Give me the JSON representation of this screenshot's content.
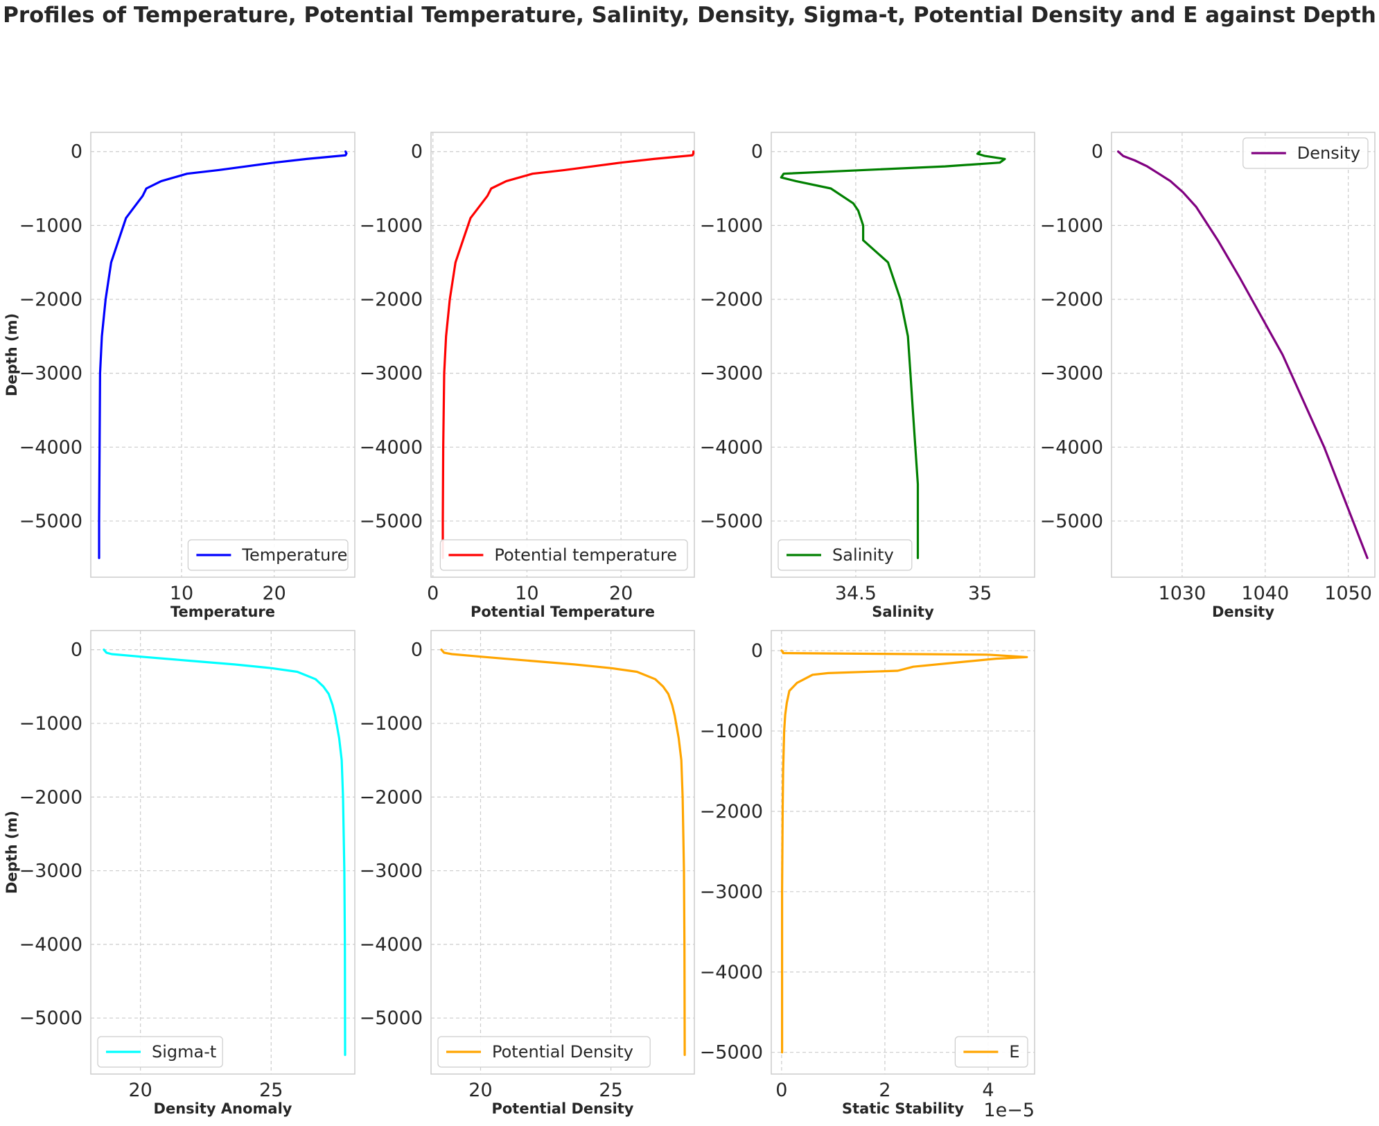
{
  "figure": {
    "title": "Profiles of Temperature, Potential Temperature, Salinity, Density, Sigma-t, Potential Density and E against Depth"
  },
  "chart_data": [
    {
      "type": "line",
      "xlabel": "Temperature",
      "ylabel": "Depth (m)",
      "xlim": [
        0.2,
        28.7
      ],
      "ylim": [
        -5760,
        260
      ],
      "xticks": [
        10,
        20
      ],
      "yticks": [
        0,
        -1000,
        -2000,
        -3000,
        -4000,
        -5000
      ],
      "grid": true,
      "legend": "lower right",
      "series": [
        {
          "name": "Temperature",
          "color": "#0000ff",
          "x": [
            27.7,
            27.8,
            27.7,
            23.5,
            20,
            17,
            14,
            10.6,
            7.8,
            6.2,
            5.8,
            4.9,
            4,
            3.2,
            2.4,
            1.8,
            1.4,
            1.2,
            1.15,
            1.1,
            1.1
          ],
          "y": [
            0,
            -25,
            -50,
            -100,
            -150,
            -200,
            -250,
            -300,
            -400,
            -500,
            -600,
            -750,
            -900,
            -1200,
            -1500,
            -2000,
            -2500,
            -3000,
            -4000,
            -5000,
            -5500
          ]
        }
      ]
    },
    {
      "type": "line",
      "xlabel": "Potential Temperature",
      "ylabel": "",
      "xlim": [
        -0.2,
        27.8
      ],
      "ylim": [
        -5760,
        260
      ],
      "xticks": [
        0,
        10,
        20
      ],
      "yticks": [
        0,
        -1000,
        -2000,
        -3000,
        -4000,
        -5000
      ],
      "grid": true,
      "legend": "lower right",
      "series": [
        {
          "name": "Potential temperature",
          "color": "#ff0000",
          "x": [
            27.7,
            27.7,
            27.6,
            23.5,
            20,
            17,
            14,
            10.6,
            7.8,
            6.2,
            5.8,
            4.9,
            4,
            3.2,
            2.4,
            1.8,
            1.4,
            1.2,
            1.1,
            1.05,
            1.05
          ],
          "y": [
            0,
            -25,
            -50,
            -100,
            -150,
            -200,
            -250,
            -300,
            -400,
            -500,
            -600,
            -750,
            -900,
            -1200,
            -1500,
            -2000,
            -2500,
            -3000,
            -4000,
            -5000,
            -5500
          ]
        }
      ]
    },
    {
      "type": "line",
      "xlabel": "Salinity",
      "ylabel": "",
      "xlim": [
        34.16,
        35.22
      ],
      "ylim": [
        -5760,
        260
      ],
      "xticks": [
        34.5,
        35.0
      ],
      "yticks": [
        0,
        -1000,
        -2000,
        -3000,
        -4000,
        -5000
      ],
      "grid": true,
      "legend": "lower left",
      "series": [
        {
          "name": "Salinity",
          "color": "#008000",
          "x": [
            35.0,
            34.99,
            35.02,
            35.1,
            35.08,
            34.86,
            34.21,
            34.2,
            34.26,
            34.4,
            34.49,
            34.51,
            34.53,
            34.53,
            34.53,
            34.63,
            34.68,
            34.71,
            34.72,
            34.73,
            34.74,
            34.75,
            34.75
          ],
          "y": [
            0,
            -30,
            -60,
            -100,
            -150,
            -200,
            -300,
            -350,
            -400,
            -500,
            -700,
            -800,
            -1000,
            -1100,
            -1200,
            -1500,
            -2000,
            -2500,
            -3000,
            -3500,
            -4000,
            -4500,
            -5500
          ]
        }
      ]
    },
    {
      "type": "line",
      "xlabel": "Density",
      "ylabel": "",
      "xlim": [
        1021.5,
        1053.2
      ],
      "ylim": [
        -5760,
        260
      ],
      "xticks": [
        1030,
        1040,
        1050
      ],
      "yticks": [
        0,
        -1000,
        -2000,
        -3000,
        -4000,
        -5000
      ],
      "grid": true,
      "legend": "upper right",
      "series": [
        {
          "name": "Density",
          "color": "#800080",
          "x": [
            1022.3,
            1022.9,
            1024.3,
            1025.8,
            1027.2,
            1028.6,
            1030.1,
            1031.7,
            1034.3,
            1036.9,
            1042.1,
            1047.1,
            1052.3
          ],
          "y": [
            0,
            -60,
            -120,
            -200,
            -300,
            -400,
            -550,
            -750,
            -1200,
            -1700,
            -2750,
            -4000,
            -5500
          ]
        }
      ]
    },
    {
      "type": "line",
      "xlabel": "Density Anomaly",
      "ylabel": "Depth (m)",
      "xlim": [
        18.1,
        28.2
      ],
      "ylim": [
        -5760,
        260
      ],
      "xticks": [
        20,
        25
      ],
      "yticks": [
        0,
        -1000,
        -2000,
        -3000,
        -4000,
        -5000
      ],
      "grid": true,
      "legend": "lower left",
      "series": [
        {
          "name": "Sigma-t",
          "color": "#00ffff",
          "x": [
            18.6,
            18.7,
            18.9,
            20.2,
            21.9,
            23.6,
            25.0,
            26.0,
            26.7,
            27.0,
            27.2,
            27.35,
            27.45,
            27.6,
            27.7,
            27.75,
            27.8,
            27.82,
            27.83
          ],
          "y": [
            0,
            -40,
            -60,
            -100,
            -150,
            -200,
            -250,
            -300,
            -400,
            -500,
            -600,
            -750,
            -900,
            -1200,
            -1500,
            -2000,
            -3000,
            -4000,
            -5500
          ]
        }
      ]
    },
    {
      "type": "line",
      "xlabel": "Potential Density",
      "ylabel": "",
      "xlim": [
        18.1,
        28.2
      ],
      "ylim": [
        -5760,
        260
      ],
      "xticks": [
        20,
        25
      ],
      "yticks": [
        0,
        -1000,
        -2000,
        -3000,
        -4000,
        -5000
      ],
      "grid": true,
      "legend": "lower left",
      "series": [
        {
          "name": "Potential Density",
          "color": "#ffa500",
          "x": [
            18.5,
            18.6,
            18.9,
            20.2,
            21.9,
            23.6,
            25.0,
            26.0,
            26.7,
            27.0,
            27.2,
            27.35,
            27.45,
            27.6,
            27.7,
            27.75,
            27.8,
            27.82,
            27.83
          ],
          "y": [
            0,
            -40,
            -60,
            -100,
            -150,
            -200,
            -250,
            -300,
            -400,
            -500,
            -600,
            -750,
            -900,
            -1200,
            -1500,
            -2000,
            -3000,
            -4000,
            -5500
          ]
        }
      ]
    },
    {
      "type": "line",
      "xlabel": "Static Stability",
      "ylabel": "",
      "xlim": [
        -2e-06,
        4.9e-05
      ],
      "ylim": [
        -5270,
        250
      ],
      "xticks": [
        0,
        2e-05,
        4e-05
      ],
      "xtick_labels": [
        "0",
        "2",
        "4"
      ],
      "x_offset_text": "1e−5",
      "yticks": [
        0,
        -1000,
        -2000,
        -3000,
        -4000,
        -5000
      ],
      "grid": true,
      "legend": "lower right",
      "series": [
        {
          "name": "E",
          "color": "#ffa500",
          "x": [
            0.0,
            2e-07,
            3e-07,
            4e-05,
            4.75e-05,
            4.15e-05,
            3.35e-05,
            2.55e-05,
            2.25e-05,
            9e-06,
            6e-06,
            3e-06,
            1.5e-06,
            1e-06,
            7e-07,
            5e-07,
            3e-07,
            2e-07,
            1e-07,
            1e-07
          ],
          "y": [
            0,
            -10,
            -30,
            -50,
            -80,
            -100,
            -150,
            -200,
            -250,
            -280,
            -300,
            -400,
            -500,
            -650,
            -800,
            -1000,
            -1500,
            -2000,
            -3000,
            -5000
          ]
        }
      ]
    }
  ]
}
